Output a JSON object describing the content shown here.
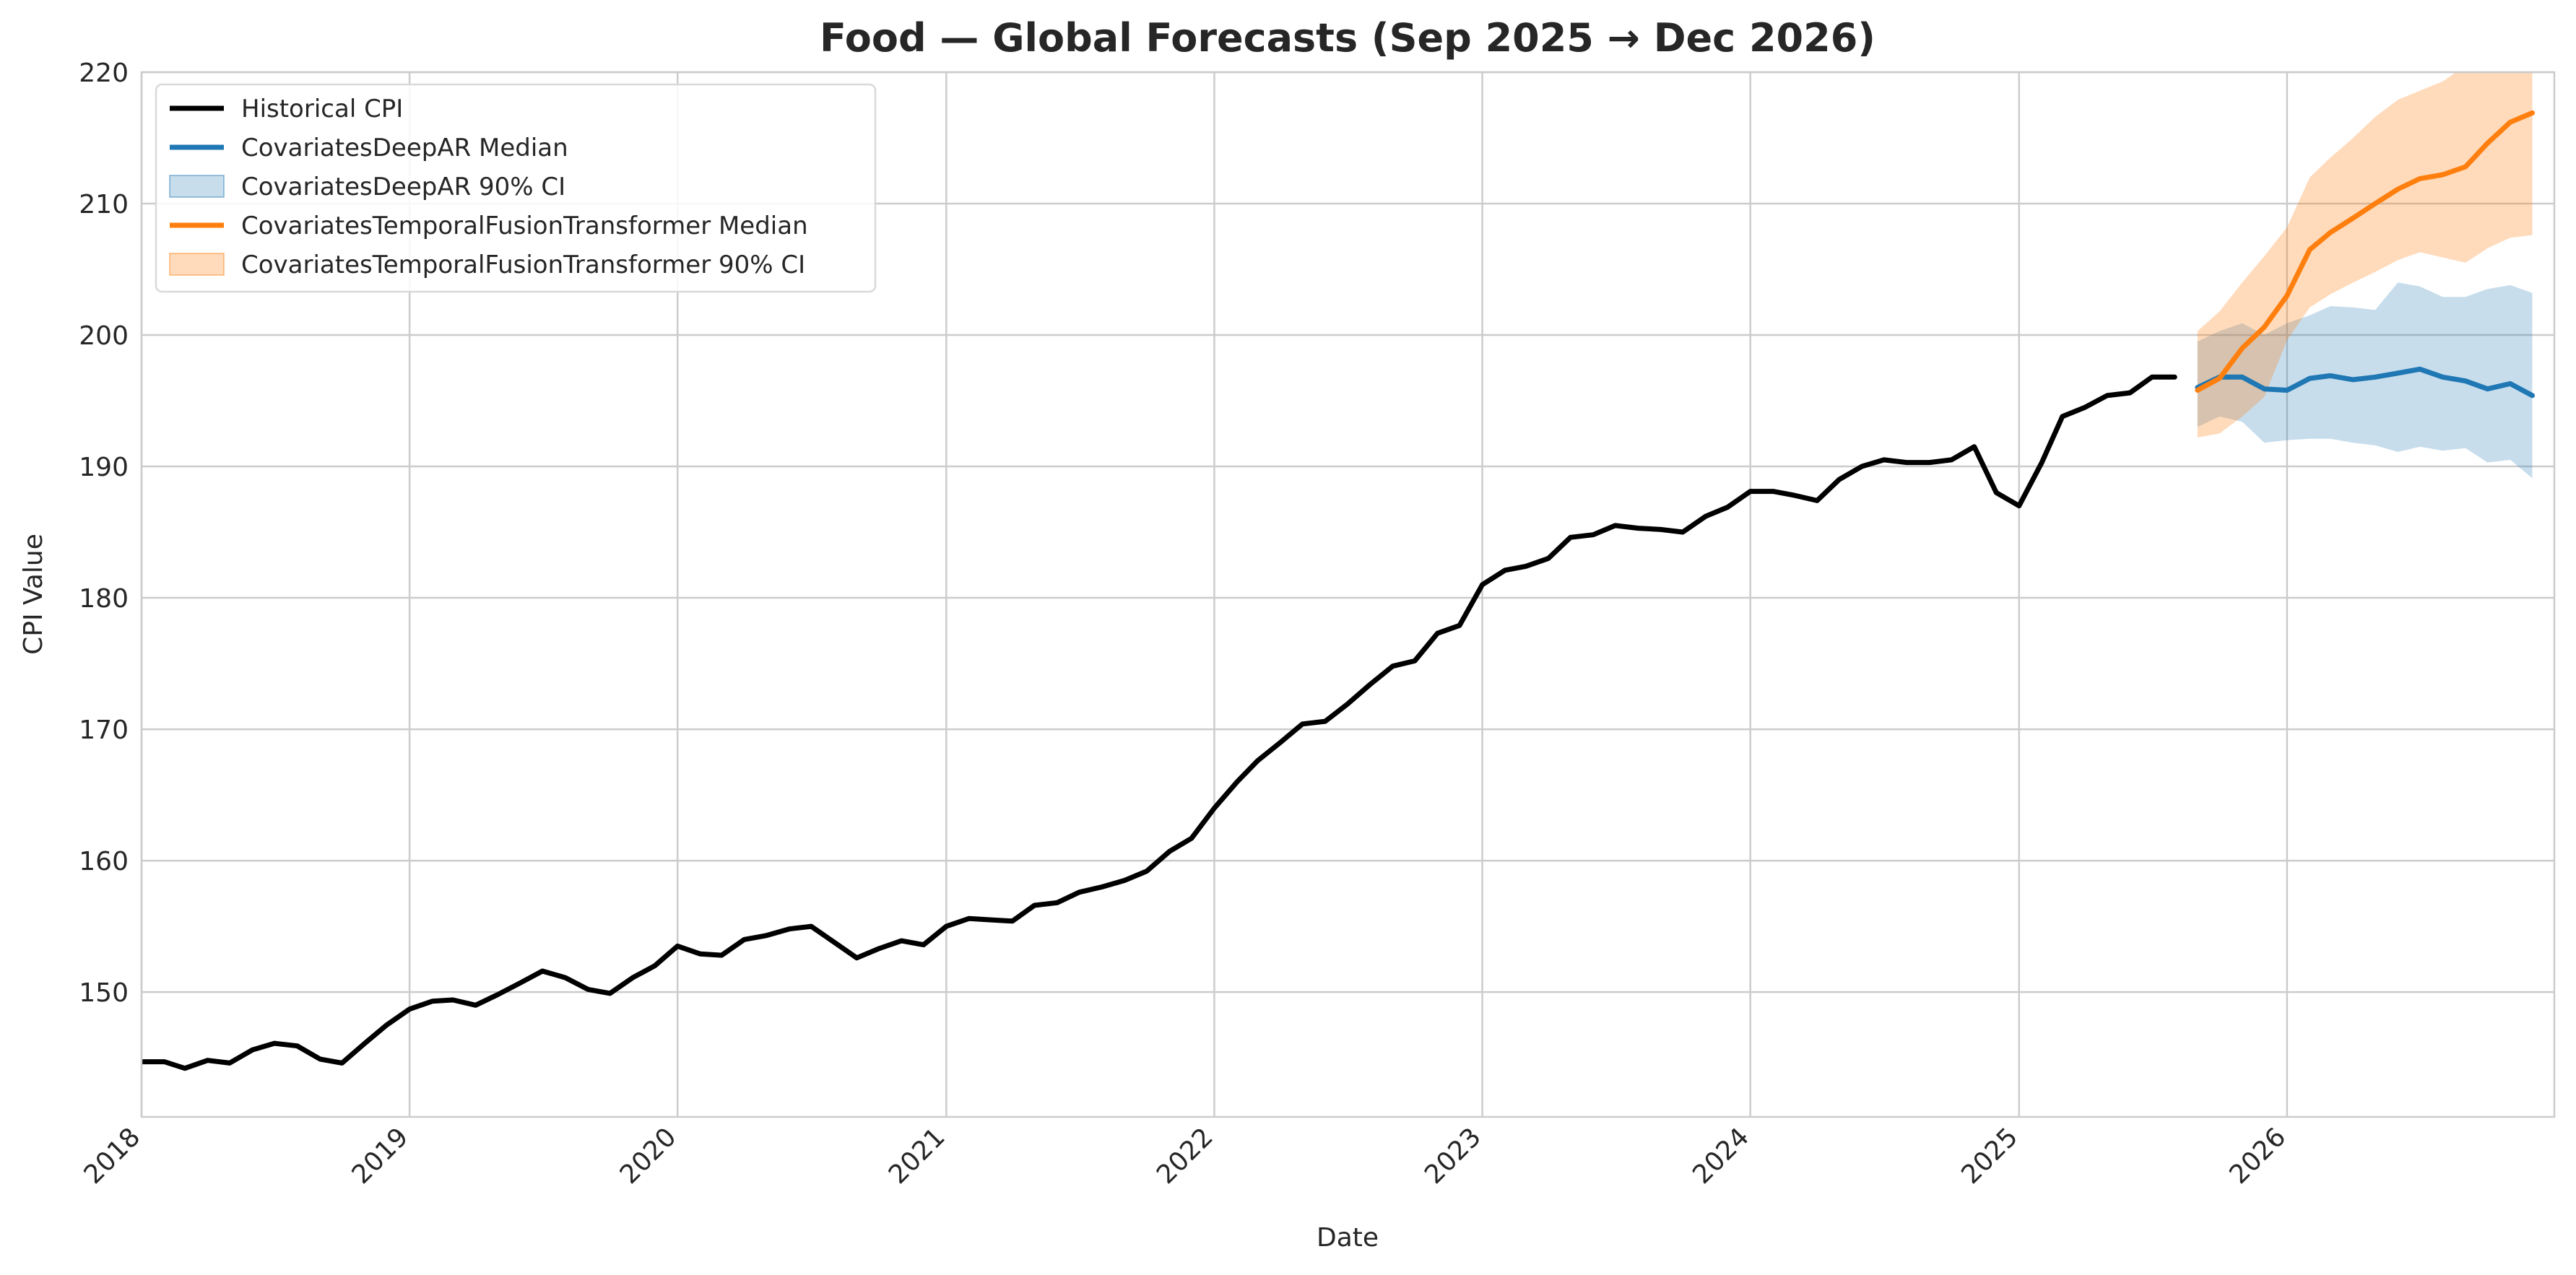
{
  "chart_data": {
    "type": "line",
    "title": "Food — Global Forecasts (Sep 2025 → Dec 2026)",
    "xlabel": "Date",
    "ylabel": "CPI Value",
    "xlim": [
      "2018-01-01",
      "2026-12-31"
    ],
    "ylim": [
      140.5,
      220
    ],
    "yticks": [
      150,
      160,
      170,
      180,
      190,
      200,
      210,
      220
    ],
    "xticks": [
      {
        "date": "2018-01-01",
        "label": "2018"
      },
      {
        "date": "2019-01-01",
        "label": "2019"
      },
      {
        "date": "2020-01-01",
        "label": "2020"
      },
      {
        "date": "2021-01-01",
        "label": "2021"
      },
      {
        "date": "2022-01-01",
        "label": "2022"
      },
      {
        "date": "2023-01-01",
        "label": "2023"
      },
      {
        "date": "2024-01-01",
        "label": "2024"
      },
      {
        "date": "2025-01-01",
        "label": "2025"
      },
      {
        "date": "2026-01-01",
        "label": "2026"
      }
    ],
    "grid": true,
    "legend_position": "upper-left",
    "series": [
      {
        "name": "Historical CPI",
        "kind": "line",
        "color": "#000000",
        "dates": [
          "2018-01",
          "2018-02",
          "2018-03",
          "2018-04",
          "2018-05",
          "2018-06",
          "2018-07",
          "2018-08",
          "2018-09",
          "2018-10",
          "2018-11",
          "2018-12",
          "2019-01",
          "2019-02",
          "2019-03",
          "2019-04",
          "2019-05",
          "2019-06",
          "2019-07",
          "2019-08",
          "2019-09",
          "2019-10",
          "2019-11",
          "2019-12",
          "2020-01",
          "2020-02",
          "2020-03",
          "2020-04",
          "2020-05",
          "2020-06",
          "2020-07",
          "2020-08",
          "2020-09",
          "2020-10",
          "2020-11",
          "2020-12",
          "2021-01",
          "2021-02",
          "2021-03",
          "2021-04",
          "2021-05",
          "2021-06",
          "2021-07",
          "2021-08",
          "2021-09",
          "2021-10",
          "2021-11",
          "2021-12",
          "2022-01",
          "2022-02",
          "2022-03",
          "2022-04",
          "2022-05",
          "2022-06",
          "2022-07",
          "2022-08",
          "2022-09",
          "2022-10",
          "2022-11",
          "2022-12",
          "2023-01",
          "2023-02",
          "2023-03",
          "2023-04",
          "2023-05",
          "2023-06",
          "2023-07",
          "2023-08",
          "2023-09",
          "2023-10",
          "2023-11",
          "2023-12",
          "2024-01",
          "2024-02",
          "2024-03",
          "2024-04",
          "2024-05",
          "2024-06",
          "2024-07",
          "2024-08",
          "2024-09",
          "2024-10",
          "2024-11",
          "2024-12",
          "2025-01",
          "2025-02",
          "2025-03",
          "2025-04",
          "2025-05",
          "2025-06",
          "2025-07",
          "2025-08"
        ],
        "values": [
          144.7,
          144.7,
          144.2,
          144.8,
          144.6,
          145.6,
          146.1,
          145.9,
          144.9,
          144.6,
          146.1,
          147.5,
          148.7,
          149.3,
          149.4,
          149.0,
          149.8,
          150.7,
          151.6,
          151.1,
          150.2,
          149.9,
          151.1,
          152.0,
          153.5,
          152.9,
          152.8,
          154.0,
          154.3,
          154.8,
          155.0,
          153.8,
          152.6,
          153.3,
          153.9,
          153.6,
          155.0,
          155.6,
          155.5,
          155.4,
          156.6,
          156.8,
          157.6,
          158.0,
          158.5,
          159.2,
          160.7,
          161.7,
          164.0,
          166.0,
          167.6,
          169.0,
          170.4,
          170.6,
          171.9,
          173.4,
          174.8,
          175.2,
          177.3,
          177.9,
          181.0,
          182.1,
          182.4,
          183.0,
          184.6,
          184.8,
          185.5,
          185.3,
          185.2,
          185.0,
          186.2,
          186.9,
          188.1,
          188.1,
          187.8,
          187.4,
          189.0,
          190.0,
          190.5,
          190.3,
          190.3,
          190.5,
          191.5,
          188.0,
          187.0,
          190.3,
          193.8,
          194.5,
          195.4,
          195.6,
          196.8,
          196.8
        ]
      },
      {
        "name": "CovariatesDeepAR Median",
        "kind": "line",
        "color": "#1f77b4",
        "dates": [
          "2025-09",
          "2025-10",
          "2025-11",
          "2025-12",
          "2026-01",
          "2026-02",
          "2026-03",
          "2026-04",
          "2026-05",
          "2026-06",
          "2026-07",
          "2026-08",
          "2026-09",
          "2026-10",
          "2026-11",
          "2026-12"
        ],
        "values": [
          196.0,
          196.8,
          196.8,
          195.9,
          195.8,
          196.7,
          196.9,
          196.6,
          196.8,
          197.1,
          197.4,
          196.8,
          196.5,
          195.9,
          196.3,
          195.4
        ]
      },
      {
        "name": "CovariatesDeepAR 90% CI",
        "kind": "band",
        "color": "#1f77b4",
        "dates": [
          "2025-09",
          "2025-10",
          "2025-11",
          "2025-12",
          "2026-01",
          "2026-02",
          "2026-03",
          "2026-04",
          "2026-05",
          "2026-06",
          "2026-07",
          "2026-08",
          "2026-09",
          "2026-10",
          "2026-11",
          "2026-12"
        ],
        "lower": [
          193.0,
          193.8,
          193.4,
          191.8,
          192.0,
          192.1,
          192.1,
          191.8,
          191.6,
          191.1,
          191.5,
          191.2,
          191.4,
          190.3,
          190.5,
          189.1
        ],
        "upper": [
          199.5,
          200.3,
          200.9,
          200.0,
          200.9,
          201.5,
          202.2,
          202.1,
          201.9,
          204.0,
          203.7,
          202.9,
          202.9,
          203.5,
          203.8,
          203.2
        ]
      },
      {
        "name": "CovariatesTemporalFusionTransformer Median",
        "kind": "line",
        "color": "#ff7f0e",
        "dates": [
          "2025-09",
          "2025-10",
          "2025-11",
          "2025-12",
          "2026-01",
          "2026-02",
          "2026-03",
          "2026-04",
          "2026-05",
          "2026-06",
          "2026-07",
          "2026-08",
          "2026-09",
          "2026-10",
          "2026-11",
          "2026-12"
        ],
        "values": [
          195.8,
          196.7,
          199.0,
          200.6,
          203.0,
          206.5,
          207.8,
          208.9,
          210.0,
          211.1,
          211.9,
          212.2,
          212.8,
          214.6,
          216.2,
          216.9
        ]
      },
      {
        "name": "CovariatesTemporalFusionTransformer 90% CI",
        "kind": "band",
        "color": "#ff7f0e",
        "dates": [
          "2025-09",
          "2025-10",
          "2025-11",
          "2025-12",
          "2026-01",
          "2026-02",
          "2026-03",
          "2026-04",
          "2026-05",
          "2026-06",
          "2026-07",
          "2026-08",
          "2026-09",
          "2026-10",
          "2026-11",
          "2026-12"
        ],
        "lower": [
          192.2,
          192.5,
          193.8,
          195.3,
          199.6,
          202.1,
          203.1,
          204.0,
          204.8,
          205.7,
          206.3,
          205.9,
          205.5,
          206.6,
          207.4,
          207.6
        ],
        "upper": [
          200.3,
          201.8,
          204.0,
          206.0,
          208.2,
          212.0,
          213.5,
          215.0,
          216.6,
          217.9,
          218.6,
          219.3,
          220.5,
          221.5,
          223.0,
          223.8
        ]
      }
    ]
  }
}
